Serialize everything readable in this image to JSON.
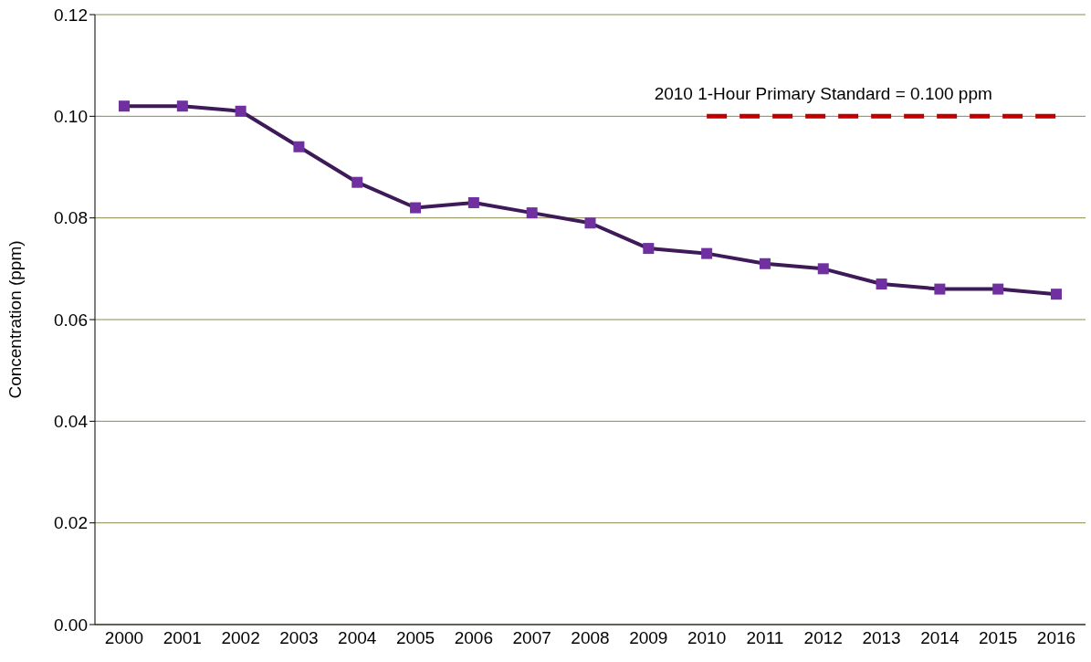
{
  "chart_data": {
    "type": "line",
    "ylabel": "Concentration (ppm)",
    "categories": [
      "2000",
      "2001",
      "2002",
      "2003",
      "2004",
      "2005",
      "2006",
      "2007",
      "2008",
      "2009",
      "2010",
      "2011",
      "2012",
      "2013",
      "2014",
      "2015",
      "2016"
    ],
    "series": [
      {
        "color": "#7030a0",
        "marker": "square",
        "values": [
          0.102,
          0.102,
          0.101,
          0.094,
          0.087,
          0.082,
          0.083,
          0.081,
          0.079,
          0.074,
          0.073,
          0.071,
          0.07,
          0.067,
          0.066,
          0.066,
          0.065
        ]
      },
      {
        "color": "#c00000",
        "marker": "none",
        "line_style": "dashed",
        "values": [
          null,
          null,
          null,
          null,
          null,
          null,
          null,
          null,
          null,
          null,
          0.1,
          0.1,
          0.1,
          0.1,
          0.1,
          0.1,
          0.1
        ]
      }
    ],
    "annotations": [
      {
        "text": "2010 1-Hour Primary Standard = 0.100 ppm",
        "x": "2012",
        "y": 0.1
      }
    ],
    "ylim": [
      0,
      0.12
    ],
    "yticks": [
      {
        "value": 0,
        "label": "0.00"
      },
      {
        "value": 0.02,
        "label": "0.02"
      },
      {
        "value": 0.04,
        "label": "0.04"
      },
      {
        "value": 0.06,
        "label": "0.06"
      },
      {
        "value": 0.08,
        "label": "0.08"
      },
      {
        "value": 0.1,
        "label": "0.10"
      },
      {
        "value": 0.12,
        "label": "0.12"
      }
    ],
    "grid": "y"
  }
}
